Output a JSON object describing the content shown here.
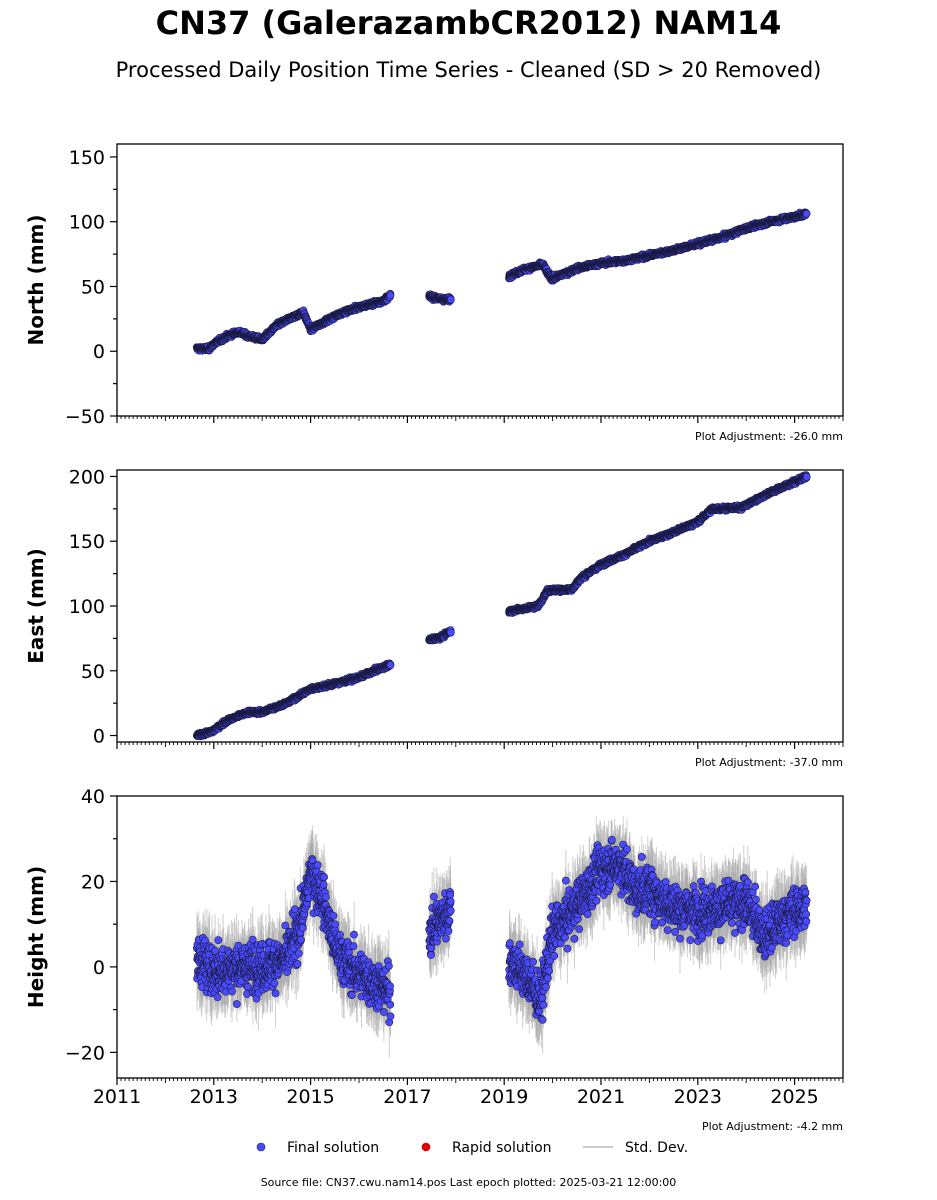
{
  "title": "CN37 (GalerazambCR2012) NAM14",
  "subtitle": "Processed Daily Position Time Series - Cleaned (SD > 20 Removed)",
  "footer": "Source file: CN37.cwu.nam14.pos  Last epoch plotted: 2025-03-21 12:00:00",
  "colors": {
    "final": "#4a4aff",
    "rapid": "#dd0000",
    "stddev": "#aaaaaa",
    "edge": "#1a1a40"
  },
  "legend": [
    {
      "label": "Final solution",
      "marker": "circle",
      "color": "#4a4aff"
    },
    {
      "label": "Rapid solution",
      "marker": "circle",
      "color": "#dd0000"
    },
    {
      "label": "Std. Dev.",
      "marker": "line",
      "color": "#aaaaaa"
    }
  ],
  "chart_data": [
    {
      "type": "scatter",
      "id": "north",
      "ylabel": "North (mm)",
      "xlim": [
        2011,
        2026
      ],
      "ylim": [
        -50,
        160
      ],
      "yticks": [
        -50,
        0,
        50,
        100,
        150
      ],
      "ytick_labels": [
        "−50",
        "0",
        "50",
        "100",
        "150"
      ],
      "xticks": [
        2011,
        2013,
        2015,
        2017,
        2019,
        2021,
        2023,
        2025
      ],
      "show_xtick_labels": false,
      "adjustment": "Plot Adjustment: -26.0 mm",
      "series": [
        {
          "segments": [
            {
              "x": [
                2012.65,
                2012.9,
                2013.05,
                2013.3,
                2013.5,
                2013.7,
                2014.0,
                2014.3,
                2014.6,
                2014.85,
                2015.0,
                2015.3,
                2015.6,
                2015.9,
                2016.2,
                2016.5,
                2016.65
              ],
              "y": [
                2,
                2,
                7,
                12,
                15,
                12,
                9,
                20,
                26,
                30,
                17,
                23,
                29,
                33,
                36,
                39,
                43
              ]
            },
            {
              "x": [
                2017.45,
                2017.6,
                2017.75,
                2017.9
              ],
              "y": [
                43,
                41,
                40,
                40
              ]
            },
            {
              "x": [
                2019.1,
                2019.4,
                2019.8,
                2019.9,
                2020.0,
                2020.5,
                2021.0,
                2021.5,
                2022.0,
                2022.5,
                2023.0,
                2023.5,
                2024.0,
                2024.5,
                2024.9,
                2025.25
              ],
              "y": [
                58,
                63,
                67,
                60,
                56,
                64,
                68,
                70,
                74,
                78,
                83,
                88,
                95,
                100,
                103,
                106
              ]
            }
          ],
          "scatter": 2.0
        }
      ]
    },
    {
      "type": "scatter",
      "id": "east",
      "ylabel": "East (mm)",
      "xlim": [
        2011,
        2026
      ],
      "ylim": [
        -5,
        205
      ],
      "yticks": [
        0,
        50,
        100,
        150,
        200
      ],
      "ytick_labels": [
        "0",
        "50",
        "100",
        "150",
        "200"
      ],
      "xticks": [
        2011,
        2013,
        2015,
        2017,
        2019,
        2021,
        2023,
        2025
      ],
      "show_xtick_labels": false,
      "adjustment": "Plot Adjustment: -37.0 mm",
      "series": [
        {
          "segments": [
            {
              "x": [
                2012.65,
                2012.95,
                2013.3,
                2013.7,
                2014.0,
                2014.5,
                2015.0,
                2015.5,
                2016.0,
                2016.65
              ],
              "y": [
                0,
                3,
                12,
                18,
                18,
                25,
                36,
                40,
                45,
                55
              ]
            },
            {
              "x": [
                2017.45,
                2017.7,
                2017.9
              ],
              "y": [
                74,
                76,
                81
              ]
            },
            {
              "x": [
                2019.1,
                2019.4,
                2019.7,
                2019.9,
                2020.4,
                2020.6,
                2021.0,
                2021.5,
                2022.0,
                2022.5,
                2023.0,
                2023.3,
                2023.9,
                2024.4,
                2025.25
              ],
              "y": [
                96,
                98,
                100,
                112,
                113,
                122,
                132,
                140,
                150,
                157,
                165,
                175,
                176,
                186,
                200
              ]
            }
          ],
          "scatter": 1.8
        }
      ]
    },
    {
      "type": "scatter",
      "id": "height",
      "ylabel": "Height (mm)",
      "xlim": [
        2011,
        2026
      ],
      "ylim": [
        -26,
        40
      ],
      "yticks": [
        -20,
        0,
        20,
        40
      ],
      "ytick_labels": [
        "−20",
        "0",
        "20",
        "40"
      ],
      "xticks": [
        2011,
        2013,
        2015,
        2017,
        2019,
        2021,
        2023,
        2025
      ],
      "xtick_labels": [
        "2011",
        "2013",
        "2015",
        "2017",
        "2019",
        "2021",
        "2023",
        "2025"
      ],
      "show_xtick_labels": true,
      "adjustment": "Plot Adjustment: -4.2 mm",
      "series": [
        {
          "segments": [
            {
              "x": [
                2012.65,
                2013.0,
                2013.5,
                2014.0,
                2014.5,
                2014.8,
                2015.0,
                2015.2,
                2015.5,
                2015.8,
                2016.2,
                2016.65
              ],
              "y": [
                2,
                -1,
                0,
                0,
                2,
                10,
                22,
                18,
                5,
                0,
                -3,
                -6
              ]
            },
            {
              "x": [
                2017.45,
                2017.7,
                2017.9
              ],
              "y": [
                8,
                11,
                14
              ]
            },
            {
              "x": [
                2019.1,
                2019.5,
                2019.75,
                2020.0,
                2020.4,
                2020.8,
                2021.0,
                2021.4,
                2021.7,
                2022.0,
                2022.5,
                2023.0,
                2023.5,
                2024.0,
                2024.4,
                2024.8,
                2025.25
              ],
              "y": [
                2,
                -3,
                -8,
                8,
                13,
                19,
                23,
                24,
                18,
                18,
                14,
                13,
                14,
                15,
                7,
                12,
                14
              ]
            }
          ],
          "scatter": 7.0
        }
      ]
    }
  ]
}
